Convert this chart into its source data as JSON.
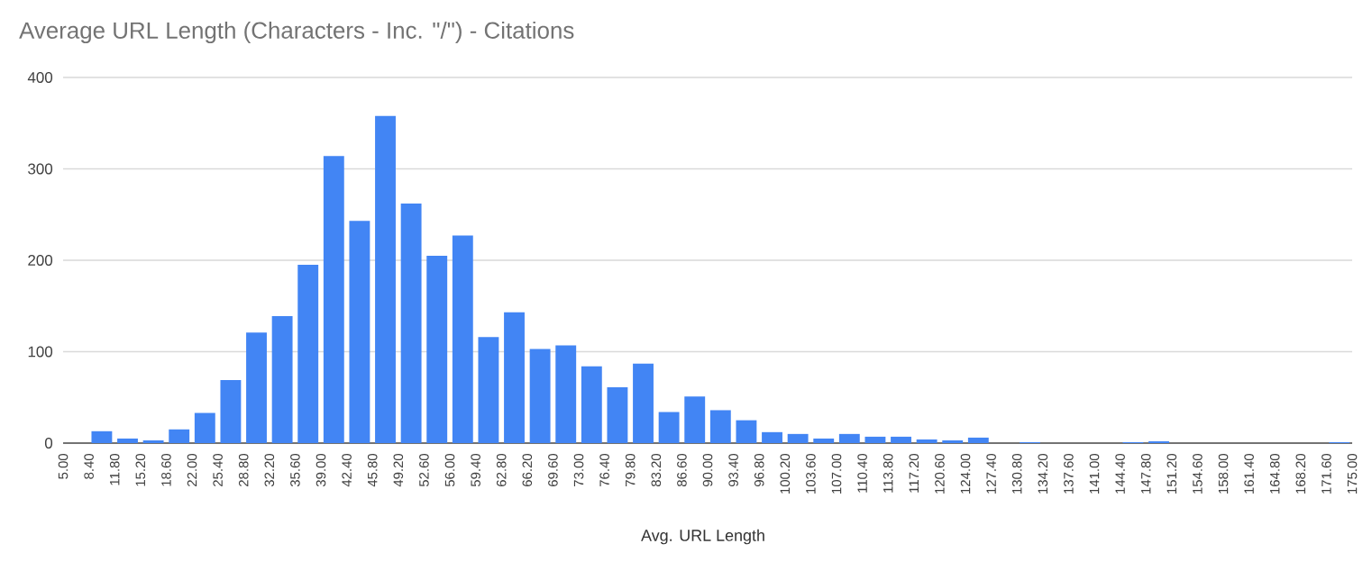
{
  "chart_data": {
    "type": "histogram",
    "title": "Average URL Length (Characters - Inc. \"/\") - Citations",
    "xlabel": "Avg. URL Length",
    "color": "#4285f4",
    "bins": [
      5.0,
      8.4,
      11.8,
      15.2,
      18.6,
      22.0,
      25.4,
      28.8,
      32.2,
      35.6,
      39.0,
      42.4,
      45.8,
      49.2,
      52.6,
      56.0,
      59.4,
      62.8,
      66.2,
      69.6,
      73.0,
      76.4,
      79.8,
      83.2,
      86.6,
      90.0,
      93.4,
      96.8,
      100.2,
      103.6,
      107.0,
      110.4,
      113.8,
      117.2,
      120.6,
      124.0,
      127.4,
      130.8,
      134.2,
      137.6,
      141.0,
      144.4,
      147.8,
      151.2,
      154.6,
      158.0,
      161.4,
      164.8,
      168.2,
      171.6,
      175.0
    ],
    "values": [
      0,
      13,
      5,
      3,
      15,
      33,
      69,
      121,
      139,
      195,
      314,
      243,
      358,
      262,
      205,
      227,
      116,
      143,
      103,
      107,
      84,
      61,
      87,
      34,
      51,
      36,
      25,
      12,
      10,
      5,
      10,
      7,
      7,
      4,
      3,
      6,
      0,
      1,
      0,
      0,
      0,
      1,
      2,
      0,
      0,
      0,
      0,
      0,
      0,
      1
    ],
    "xlim": [
      5,
      175
    ],
    "xticks": [
      {
        "value": 5.0,
        "label": "5.00"
      },
      {
        "value": 8.4,
        "label": "8.40"
      },
      {
        "value": 11.8,
        "label": "11.80"
      },
      {
        "value": 15.2,
        "label": "15.20"
      },
      {
        "value": 18.6,
        "label": "18.60"
      },
      {
        "value": 22.0,
        "label": "22.00"
      },
      {
        "value": 25.4,
        "label": "25.40"
      },
      {
        "value": 28.8,
        "label": "28.80"
      },
      {
        "value": 32.2,
        "label": "32.20"
      },
      {
        "value": 35.6,
        "label": "35.60"
      },
      {
        "value": 39.0,
        "label": "39.00"
      },
      {
        "value": 42.4,
        "label": "42.40"
      },
      {
        "value": 45.8,
        "label": "45.80"
      },
      {
        "value": 49.2,
        "label": "49.20"
      },
      {
        "value": 52.6,
        "label": "52.60"
      },
      {
        "value": 56.0,
        "label": "56.00"
      },
      {
        "value": 59.4,
        "label": "59.40"
      },
      {
        "value": 62.8,
        "label": "62.80"
      },
      {
        "value": 66.2,
        "label": "66.20"
      },
      {
        "value": 69.6,
        "label": "69.60"
      },
      {
        "value": 73.0,
        "label": "73.00"
      },
      {
        "value": 76.4,
        "label": "76.40"
      },
      {
        "value": 79.8,
        "label": "79.80"
      },
      {
        "value": 83.2,
        "label": "83.20"
      },
      {
        "value": 86.6,
        "label": "86.60"
      },
      {
        "value": 90.0,
        "label": "90.00"
      },
      {
        "value": 93.4,
        "label": "93.40"
      },
      {
        "value": 96.8,
        "label": "96.80"
      },
      {
        "value": 100.2,
        "label": "100.20"
      },
      {
        "value": 103.6,
        "label": "103.60"
      },
      {
        "value": 107.0,
        "label": "107.00"
      },
      {
        "value": 110.4,
        "label": "110.40"
      },
      {
        "value": 113.8,
        "label": "113.80"
      },
      {
        "value": 117.2,
        "label": "117.20"
      },
      {
        "value": 120.6,
        "label": "120.60"
      },
      {
        "value": 124.0,
        "label": "124.00"
      },
      {
        "value": 127.4,
        "label": "127.40"
      },
      {
        "value": 130.8,
        "label": "130.80"
      },
      {
        "value": 134.2,
        "label": "134.20"
      },
      {
        "value": 137.6,
        "label": "137.60"
      },
      {
        "value": 141.0,
        "label": "141.00"
      },
      {
        "value": 144.4,
        "label": "144.40"
      },
      {
        "value": 147.8,
        "label": "147.80"
      },
      {
        "value": 151.2,
        "label": "151.20"
      },
      {
        "value": 154.6,
        "label": "154.60"
      },
      {
        "value": 158.0,
        "label": "158.00"
      },
      {
        "value": 161.4,
        "label": "161.40"
      },
      {
        "value": 164.8,
        "label": "164.80"
      },
      {
        "value": 168.2,
        "label": "168.20"
      },
      {
        "value": 171.6,
        "label": "171.60"
      },
      {
        "value": 175.0,
        "label": "175.00"
      }
    ],
    "ylim": [
      0,
      400
    ],
    "yticks": [
      0,
      100,
      200,
      300,
      400
    ],
    "grid": "y"
  }
}
